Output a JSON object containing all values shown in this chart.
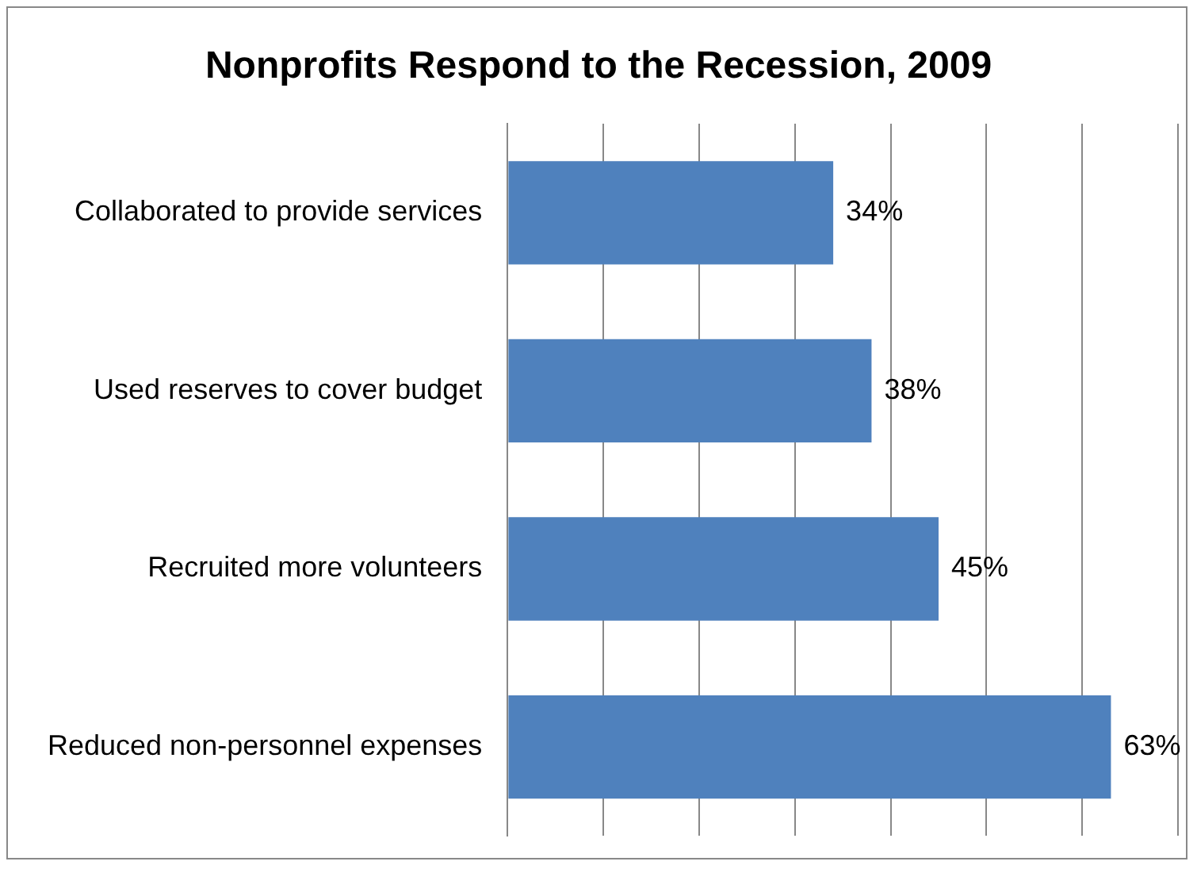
{
  "chart_data": {
    "type": "bar",
    "orientation": "horizontal",
    "title": "Nonprofits Respond to the Recession, 2009",
    "categories": [
      "Collaborated to provide services",
      "Used reserves to cover budget",
      "Recruited more volunteers",
      "Reduced non-personnel expenses"
    ],
    "values": [
      34,
      38,
      45,
      63
    ],
    "color": "#4f81bd",
    "value_labels": [
      "34%",
      "38%",
      "45%",
      "63%"
    ],
    "xlim": [
      0,
      70
    ],
    "xticks": [
      {
        "value": 0,
        "label": null
      },
      {
        "value": 10,
        "label": null
      },
      {
        "value": 20,
        "label": null
      },
      {
        "value": 30,
        "label": null
      },
      {
        "value": 40,
        "label": null
      },
      {
        "value": 50,
        "label": null
      },
      {
        "value": 60,
        "label": null
      },
      {
        "value": 70,
        "label": null
      }
    ],
    "tick_labels": "y",
    "grid": "x",
    "legend": false
  }
}
